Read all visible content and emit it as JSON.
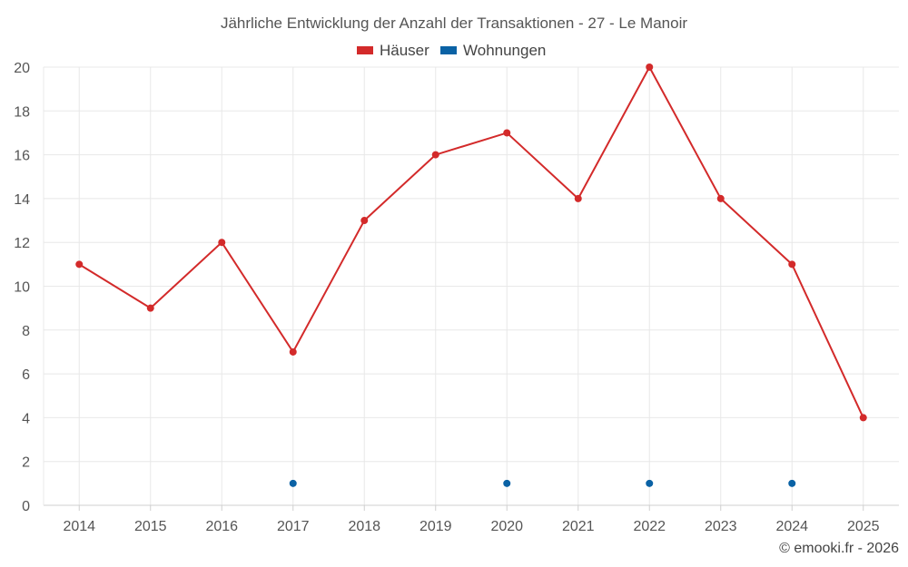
{
  "chart_data": {
    "type": "line",
    "title": "Jährliche Entwicklung der Anzahl der Transaktionen - 27 - Le Manoir",
    "categories": [
      "2014",
      "2015",
      "2016",
      "2017",
      "2018",
      "2019",
      "2020",
      "2021",
      "2022",
      "2023",
      "2024",
      "2025"
    ],
    "series": [
      {
        "name": "Häuser",
        "color": "#d32a2a",
        "values": [
          11,
          9,
          12,
          7,
          13,
          16,
          17,
          14,
          20,
          14,
          11,
          4
        ]
      },
      {
        "name": "Wohnungen",
        "color": "#0a62a5",
        "values": [
          null,
          null,
          null,
          1,
          null,
          null,
          1,
          null,
          1,
          null,
          1,
          null
        ]
      }
    ],
    "ylim": [
      0,
      20
    ],
    "yticks": [
      0,
      2,
      4,
      6,
      8,
      10,
      12,
      14,
      16,
      18,
      20
    ],
    "xlabel": "",
    "ylabel": "",
    "grid": true,
    "legend_position": "top-center"
  },
  "footer": {
    "credit": "© emooki.fr - 2026"
  }
}
